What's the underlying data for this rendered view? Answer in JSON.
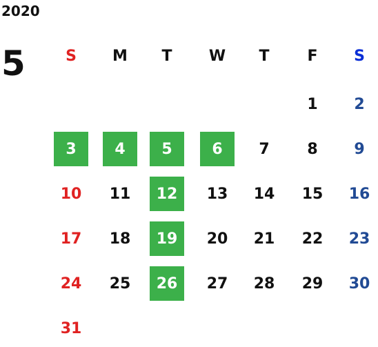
{
  "year": "2020",
  "month": "5",
  "weekdays": [
    "S",
    "M",
    "T",
    "W",
    "T",
    "F",
    "S"
  ],
  "weeks": [
    [
      null,
      null,
      null,
      null,
      null,
      {
        "day": "1"
      },
      {
        "day": "2"
      }
    ],
    [
      {
        "day": "3",
        "highlight": true
      },
      {
        "day": "4",
        "highlight": true
      },
      {
        "day": "5",
        "highlight": true
      },
      {
        "day": "6",
        "highlight": true
      },
      {
        "day": "7"
      },
      {
        "day": "8"
      },
      {
        "day": "9"
      }
    ],
    [
      {
        "day": "10"
      },
      {
        "day": "11"
      },
      {
        "day": "12",
        "highlight": true
      },
      {
        "day": "13"
      },
      {
        "day": "14"
      },
      {
        "day": "15"
      },
      {
        "day": "16"
      }
    ],
    [
      {
        "day": "17"
      },
      {
        "day": "18"
      },
      {
        "day": "19",
        "highlight": true
      },
      {
        "day": "20"
      },
      {
        "day": "21"
      },
      {
        "day": "22"
      },
      {
        "day": "23"
      }
    ],
    [
      {
        "day": "24"
      },
      {
        "day": "25"
      },
      {
        "day": "26",
        "highlight": true
      },
      {
        "day": "27"
      },
      {
        "day": "28"
      },
      {
        "day": "29"
      },
      {
        "day": "30"
      }
    ],
    [
      {
        "day": "31"
      },
      null,
      null,
      null,
      null,
      null,
      null
    ]
  ]
}
